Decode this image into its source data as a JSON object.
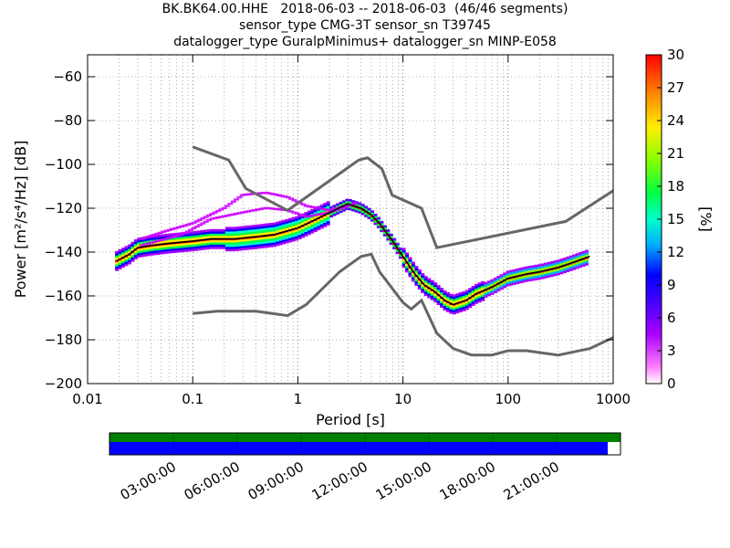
{
  "header": {
    "line1": "BK.BK64.00.HHE   2018-06-03 -- 2018-06-03  (46/46 segments)",
    "line2": "sensor_type CMG-3T sensor_sn T39745",
    "line3": "datalogger_type GuralpMinimus+ datalogger_sn MINP-E058"
  },
  "chart_data": [
    {
      "type": "heatmap",
      "title": "BK.BK64.00.HHE   2018-06-03 -- 2018-06-03  (46/46 segments)",
      "xlabel": "Period [s]",
      "ylabel": "Power [m²/s⁴/Hz] [dB]",
      "x_scale": "log",
      "xlim": [
        0.01,
        1000
      ],
      "ylim": [
        -200,
        -50
      ],
      "x_ticks": [
        "0.01",
        "0.1",
        "1",
        "10",
        "100",
        "1000"
      ],
      "y_ticks": [
        "−60",
        "−80",
        "−100",
        "−120",
        "−140",
        "−160",
        "−180",
        "−200"
      ],
      "grid": true,
      "colorbar": {
        "label": "[%]",
        "min": 0,
        "max": 30,
        "ticks": [
          "30",
          "27",
          "24",
          "21",
          "18",
          "15",
          "12",
          "9",
          "6",
          "3",
          "0"
        ]
      },
      "mean_curve": [
        [
          0.019,
          -144
        ],
        [
          0.025,
          -141
        ],
        [
          0.03,
          -138
        ],
        [
          0.04,
          -137
        ],
        [
          0.06,
          -136
        ],
        [
          0.1,
          -135
        ],
        [
          0.15,
          -134
        ],
        [
          0.25,
          -134
        ],
        [
          0.4,
          -133
        ],
        [
          0.6,
          -132
        ],
        [
          1.0,
          -129
        ],
        [
          1.5,
          -125
        ],
        [
          2.0,
          -122
        ],
        [
          3.0,
          -118
        ],
        [
          4.0,
          -120
        ],
        [
          5.0,
          -123
        ],
        [
          6.0,
          -127
        ],
        [
          8.0,
          -135
        ],
        [
          10,
          -142
        ],
        [
          13,
          -150
        ],
        [
          16,
          -155
        ],
        [
          20,
          -158
        ],
        [
          25,
          -162
        ],
        [
          30,
          -164
        ],
        [
          40,
          -162
        ],
        [
          50,
          -159
        ],
        [
          70,
          -156
        ],
        [
          100,
          -152
        ],
        [
          150,
          -150
        ],
        [
          200,
          -149
        ],
        [
          300,
          -147
        ],
        [
          400,
          -145
        ],
        [
          600,
          -142
        ]
      ],
      "nlnm_curve": [
        [
          0.1,
          -168
        ],
        [
          0.17,
          -167
        ],
        [
          0.4,
          -167
        ],
        [
          0.8,
          -169
        ],
        [
          1.2,
          -164
        ],
        [
          2.5,
          -149
        ],
        [
          4.0,
          -142
        ],
        [
          5.0,
          -141
        ],
        [
          6.0,
          -149
        ],
        [
          10,
          -163
        ],
        [
          12,
          -166
        ],
        [
          15,
          -162
        ],
        [
          21,
          -177
        ],
        [
          30,
          -184
        ],
        [
          45,
          -187
        ],
        [
          70,
          -187
        ],
        [
          100,
          -185
        ],
        [
          150,
          -185
        ],
        [
          300,
          -187
        ],
        [
          600,
          -184
        ],
        [
          1000,
          -179
        ]
      ],
      "nhnm_curve": [
        [
          0.1,
          -92
        ],
        [
          0.22,
          -98
        ],
        [
          0.32,
          -111
        ],
        [
          0.8,
          -121
        ],
        [
          3.8,
          -98
        ],
        [
          4.6,
          -97
        ],
        [
          6.3,
          -102
        ],
        [
          7.9,
          -114
        ],
        [
          15,
          -120
        ],
        [
          21,
          -138
        ],
        [
          354,
          -126
        ],
        [
          1000,
          -112
        ]
      ],
      "outlier_curves": [
        [
          [
            0.033,
            -134
          ],
          [
            0.06,
            -130
          ],
          [
            0.1,
            -127
          ],
          [
            0.2,
            -120
          ],
          [
            0.3,
            -114
          ],
          [
            0.5,
            -113
          ],
          [
            0.8,
            -115
          ],
          [
            1.2,
            -119
          ],
          [
            2.0,
            -121
          ],
          [
            3.5,
            -118
          ]
        ],
        [
          [
            0.033,
            -137
          ],
          [
            0.08,
            -132
          ],
          [
            0.15,
            -125
          ],
          [
            0.3,
            -122
          ],
          [
            0.5,
            -120
          ],
          [
            0.8,
            -121
          ],
          [
            1.2,
            -124
          ],
          [
            2.0,
            -122
          ],
          [
            3.5,
            -118
          ]
        ]
      ],
      "bottom_bar": {
        "time_ticks": [
          "03:00:00",
          "06:00:00",
          "09:00:00",
          "12:00:00",
          "15:00:00",
          "18:00:00",
          "21:00:00"
        ],
        "data_fraction": 0.975,
        "colors": {
          "data_row": "#0000ff",
          "gap_row": "#008000"
        }
      }
    }
  ],
  "colors": {
    "model_line": "#666666",
    "mean_line": "#000000"
  }
}
